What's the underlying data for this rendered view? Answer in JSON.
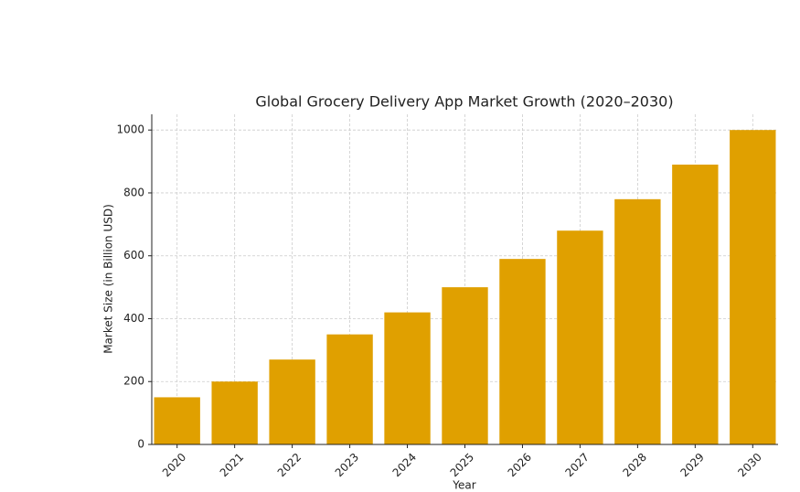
{
  "chart_data": {
    "type": "bar",
    "title": "Global Grocery Delivery App Market Growth (2020–2030)",
    "x_label": "Year",
    "y_label": "Market Size (in Billion USD)",
    "categories": [
      "2020",
      "2021",
      "2022",
      "2023",
      "2024",
      "2025",
      "2026",
      "2027",
      "2028",
      "2029",
      "2030"
    ],
    "values": [
      150,
      200,
      270,
      350,
      420,
      500,
      590,
      680,
      780,
      890,
      1000
    ],
    "color": "#e0a000",
    "ylim": [
      0,
      1050
    ],
    "yticks": [
      0,
      200,
      400,
      600,
      800,
      1000
    ],
    "grid": true
  }
}
